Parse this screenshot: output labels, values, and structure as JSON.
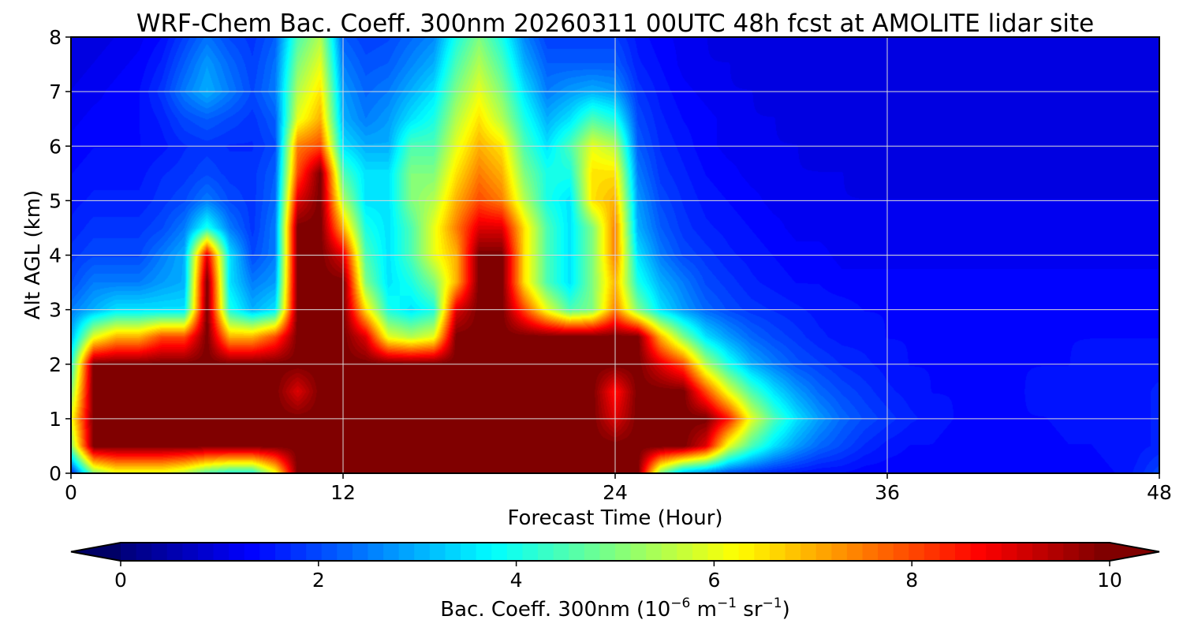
{
  "chart_data": {
    "type": "heatmap",
    "title": "WRF-Chem Bac. Coeff. 300nm  20260311 00UTC 48h fcst at AMOLITE lidar site",
    "xlabel": "Forecast Time (Hour)",
    "ylabel": "Alt AGL (km)",
    "xlim": [
      0,
      48
    ],
    "ylim": [
      0,
      8
    ],
    "xticks": [
      0,
      12,
      24,
      36,
      48
    ],
    "yticks": [
      0,
      1,
      2,
      3,
      4,
      5,
      6,
      7,
      8
    ],
    "grid": true,
    "colormap": "jet",
    "colorbar": {
      "label_main": "Bac. Coeff. 300nm  (10",
      "label_exp1": "−6",
      "label_mid": " m",
      "label_exp2": "−1",
      "label_mid2": " sr",
      "label_exp3": "−1",
      "label_end": ")",
      "range": [
        0,
        10
      ],
      "ticks": [
        0,
        2,
        4,
        6,
        8,
        10
      ],
      "extend": "both",
      "orientation": "horizontal"
    },
    "hours": [
      0,
      1,
      2,
      3,
      4,
      5,
      6,
      7,
      8,
      9,
      10,
      11,
      12,
      13,
      14,
      15,
      16,
      17,
      18,
      19,
      20,
      21,
      22,
      23,
      24,
      25,
      26,
      27,
      28,
      29,
      30,
      31,
      32,
      33,
      34,
      35,
      36,
      37,
      38,
      39,
      40,
      41,
      42,
      43,
      44,
      45,
      46,
      47,
      48
    ],
    "altitudes_km": [
      0,
      0.5,
      1,
      1.5,
      2,
      2.5,
      3,
      3.5,
      4,
      4.5,
      5,
      5.5,
      6,
      6.5,
      7,
      7.5,
      8
    ],
    "values_by_altitude": [
      [
        1.5,
        5,
        6,
        6,
        6,
        5.5,
        4.5,
        4,
        4,
        6,
        10,
        10,
        10,
        10,
        10,
        10,
        10,
        10,
        10,
        10,
        10,
        10,
        10,
        10,
        10,
        10,
        5,
        3,
        2.5,
        2,
        1.8,
        1.6,
        1.5,
        1.4,
        1.4,
        1.3,
        1.3,
        1.3,
        1.3,
        1.3,
        1.3,
        1.3,
        1.3,
        1.3,
        1.3,
        1.3,
        1.4,
        1.6,
        2
      ],
      [
        5,
        10,
        10,
        10,
        10,
        10,
        10,
        10,
        10,
        10,
        10,
        10,
        10,
        10,
        10,
        10,
        10,
        10,
        10,
        10,
        10,
        10,
        10,
        10,
        10,
        10,
        10,
        10,
        9,
        6,
        4.5,
        3.5,
        2.8,
        2.3,
        2,
        1.7,
        1.5,
        1.4,
        1.4,
        1.3,
        1.3,
        1.3,
        1.3,
        1.3,
        1.4,
        1.4,
        1.5,
        1.5,
        1.6
      ],
      [
        6,
        10,
        10,
        10,
        10,
        10,
        10,
        10,
        10,
        10,
        10,
        10,
        10,
        10,
        10,
        10,
        10,
        10,
        10,
        10,
        10,
        10,
        10,
        10,
        9,
        10,
        10,
        10,
        10,
        8.5,
        6,
        4.5,
        3.5,
        2.8,
        2.3,
        2,
        1.8,
        1.6,
        1.5,
        1.4,
        1.4,
        1.4,
        1.4,
        1.4,
        1.5,
        1.5,
        1.5,
        1.5,
        1.6
      ],
      [
        5,
        10,
        10,
        10,
        10,
        10,
        10,
        10,
        10,
        10,
        9,
        10,
        10,
        10,
        10,
        10,
        10,
        10,
        10,
        10,
        10,
        10,
        10,
        10,
        8.5,
        10,
        10,
        10,
        8,
        6,
        4.5,
        3.5,
        2.8,
        2.3,
        2,
        1.8,
        1.6,
        1.5,
        1.4,
        1.4,
        1.4,
        1.4,
        1.4,
        1.5,
        1.5,
        1.5,
        1.5,
        1.5,
        1.6
      ],
      [
        4,
        10,
        10,
        10,
        10,
        10,
        10,
        10,
        10,
        10,
        10,
        10,
        10,
        10,
        10,
        10,
        10,
        10,
        10,
        10,
        10,
        10,
        10,
        10,
        10,
        10,
        9,
        8,
        5.5,
        4,
        3,
        2.5,
        2.1,
        1.9,
        1.7,
        1.6,
        1.5,
        1.4,
        1.4,
        1.4,
        1.4,
        1.4,
        1.4,
        1.4,
        1.4,
        1.5,
        1.5,
        1.5,
        1.5
      ],
      [
        3,
        6,
        7,
        7,
        8,
        8,
        10,
        7,
        7,
        8,
        10,
        10,
        10,
        9,
        6,
        5.5,
        6,
        10,
        10,
        10,
        10,
        10,
        10,
        10,
        10,
        10,
        7,
        5,
        3.5,
        2.8,
        2.3,
        2,
        1.8,
        1.6,
        1.5,
        1.5,
        1.4,
        1.4,
        1.4,
        1.4,
        1.4,
        1.4,
        1.4,
        1.4,
        1.4,
        1.4,
        1.4,
        1.4,
        1.4
      ],
      [
        2.5,
        3,
        3.5,
        3.5,
        3.5,
        3.5,
        10,
        4,
        3,
        3.5,
        10,
        10,
        10,
        6.5,
        4,
        3.5,
        4,
        9,
        10,
        10,
        8,
        6,
        4.5,
        5,
        7.5,
        5,
        3.5,
        2.8,
        2.3,
        2,
        1.8,
        1.7,
        1.6,
        1.5,
        1.5,
        1.4,
        1.4,
        1.4,
        1.4,
        1.4,
        1.4,
        1.4,
        1.4,
        1.4,
        1.4,
        1.4,
        1.4,
        1.4,
        1.4
      ],
      [
        2,
        2.5,
        2.5,
        2.5,
        2.8,
        3,
        10,
        3.5,
        2.5,
        2.8,
        10,
        10,
        10,
        5,
        3.5,
        4,
        5,
        7,
        10,
        10,
        6.5,
        4.5,
        3.5,
        5,
        7,
        4,
        3,
        2.5,
        2,
        1.8,
        1.6,
        1.5,
        1.4,
        1.4,
        1.3,
        1.3,
        1.3,
        1.3,
        1.3,
        1.3,
        1.3,
        1.3,
        1.3,
        1.3,
        1.3,
        1.3,
        1.3,
        1.3,
        1.3
      ],
      [
        1.8,
        2,
        2,
        2,
        2.5,
        3,
        9,
        3.5,
        2,
        2.5,
        10,
        10,
        9,
        4.5,
        3.5,
        4.5,
        6,
        7,
        10,
        10,
        6.5,
        4.5,
        3.5,
        5,
        7.5,
        3.5,
        2.5,
        2,
        1.8,
        1.6,
        1.5,
        1.4,
        1.3,
        1.3,
        1.2,
        1.2,
        1.2,
        1.2,
        1.2,
        1.2,
        1.2,
        1.2,
        1.2,
        1.2,
        1.2,
        1.2,
        1.2,
        1.2,
        1.2
      ],
      [
        1.6,
        1.8,
        1.8,
        1.8,
        2,
        2.5,
        4,
        2.5,
        1.8,
        2.5,
        10,
        10,
        7,
        4,
        3.5,
        4.5,
        6,
        7.5,
        9,
        9,
        6.5,
        4.5,
        3.5,
        5,
        7.5,
        3,
        2.2,
        1.8,
        1.6,
        1.5,
        1.4,
        1.3,
        1.2,
        1.2,
        1.2,
        1.1,
        1.1,
        1.1,
        1.1,
        1.1,
        1.1,
        1.1,
        1.1,
        1.1,
        1.1,
        1.1,
        1.1,
        1.1,
        1.1
      ],
      [
        1.5,
        1.6,
        1.6,
        1.6,
        1.8,
        2,
        2.5,
        2,
        1.8,
        2.3,
        9,
        10,
        5.5,
        3.5,
        3.5,
        5,
        5.5,
        7,
        8,
        7.5,
        5.5,
        4,
        3.5,
        6.5,
        7,
        2.8,
        2,
        1.7,
        1.5,
        1.4,
        1.3,
        1.2,
        1.2,
        1.1,
        1.1,
        1.1,
        1.1,
        1.1,
        1.1,
        1.1,
        1.1,
        1.1,
        1.1,
        1.1,
        1.1,
        1.1,
        1.1,
        1.1,
        1.1
      ],
      [
        1.4,
        1.5,
        1.5,
        1.5,
        1.7,
        1.8,
        2,
        1.8,
        1.8,
        2.2,
        8,
        10,
        4.5,
        3.5,
        3.5,
        5,
        5,
        6.5,
        7.5,
        7,
        5,
        4,
        4,
        6.5,
        6.5,
        2.5,
        1.8,
        1.6,
        1.4,
        1.3,
        1.2,
        1.2,
        1.1,
        1.1,
        1.1,
        1,
        1,
        1,
        1,
        1,
        1,
        1,
        1,
        1,
        1,
        1,
        1,
        1,
        1
      ],
      [
        1.3,
        1.4,
        1.4,
        1.4,
        1.5,
        1.7,
        1.8,
        1.7,
        1.7,
        2,
        7.5,
        8,
        3.5,
        3,
        3,
        4.5,
        4.5,
        6,
        7,
        6.5,
        4.5,
        3.5,
        4.5,
        6,
        5.5,
        2.2,
        1.7,
        1.5,
        1.3,
        1.2,
        1.2,
        1.1,
        1.1,
        1,
        1,
        1,
        1,
        1,
        1,
        1,
        1,
        1,
        1,
        1,
        1,
        1,
        1,
        1,
        1
      ],
      [
        1.2,
        1.3,
        1.3,
        1.4,
        1.6,
        2,
        2.2,
        2,
        1.8,
        2.2,
        6,
        7,
        3,
        2.5,
        2.8,
        3.5,
        4,
        5.5,
        6.5,
        5.5,
        4,
        3,
        3.5,
        4.5,
        4,
        2,
        1.6,
        1.4,
        1.3,
        1.2,
        1.1,
        1.1,
        1,
        1,
        1,
        1,
        1,
        1,
        1,
        1,
        1,
        1,
        1,
        1,
        1,
        1,
        1,
        1,
        1
      ],
      [
        1.1,
        1.2,
        1.3,
        1.4,
        1.8,
        2.5,
        3,
        2.5,
        2,
        2.5,
        5.5,
        6.5,
        2.8,
        2.3,
        2.5,
        3,
        3.5,
        5,
        6,
        5,
        3.5,
        2.5,
        2.8,
        3,
        2.8,
        1.8,
        1.5,
        1.3,
        1.2,
        1.1,
        1.1,
        1,
        1,
        1,
        1,
        1,
        1,
        1,
        1,
        1,
        1,
        1,
        1,
        1,
        1,
        1,
        1,
        1,
        1
      ],
      [
        1,
        1.1,
        1.2,
        1.3,
        1.6,
        2.2,
        2.8,
        2.3,
        1.9,
        2.4,
        5,
        6,
        2.5,
        2.1,
        2.2,
        2.6,
        3,
        4.5,
        5.5,
        4.5,
        3,
        2.2,
        2.2,
        2.2,
        2.2,
        1.6,
        1.4,
        1.2,
        1.1,
        1.1,
        1,
        1,
        1,
        1,
        1,
        1,
        1,
        1,
        1,
        1,
        1,
        1,
        1,
        1,
        1,
        1,
        1,
        1,
        1
      ],
      [
        1,
        1,
        1.1,
        1.2,
        1.4,
        1.9,
        2.4,
        2,
        1.8,
        2.2,
        4.5,
        5.5,
        2.2,
        1.9,
        2,
        2.3,
        2.6,
        4,
        5,
        4,
        2.6,
        1.9,
        1.9,
        1.9,
        1.9,
        1.5,
        1.3,
        1.2,
        1.1,
        1,
        1,
        1,
        1,
        1,
        1,
        1,
        1,
        1,
        1,
        1,
        1,
        1,
        1,
        1,
        1,
        1,
        1,
        1,
        1
      ]
    ]
  }
}
